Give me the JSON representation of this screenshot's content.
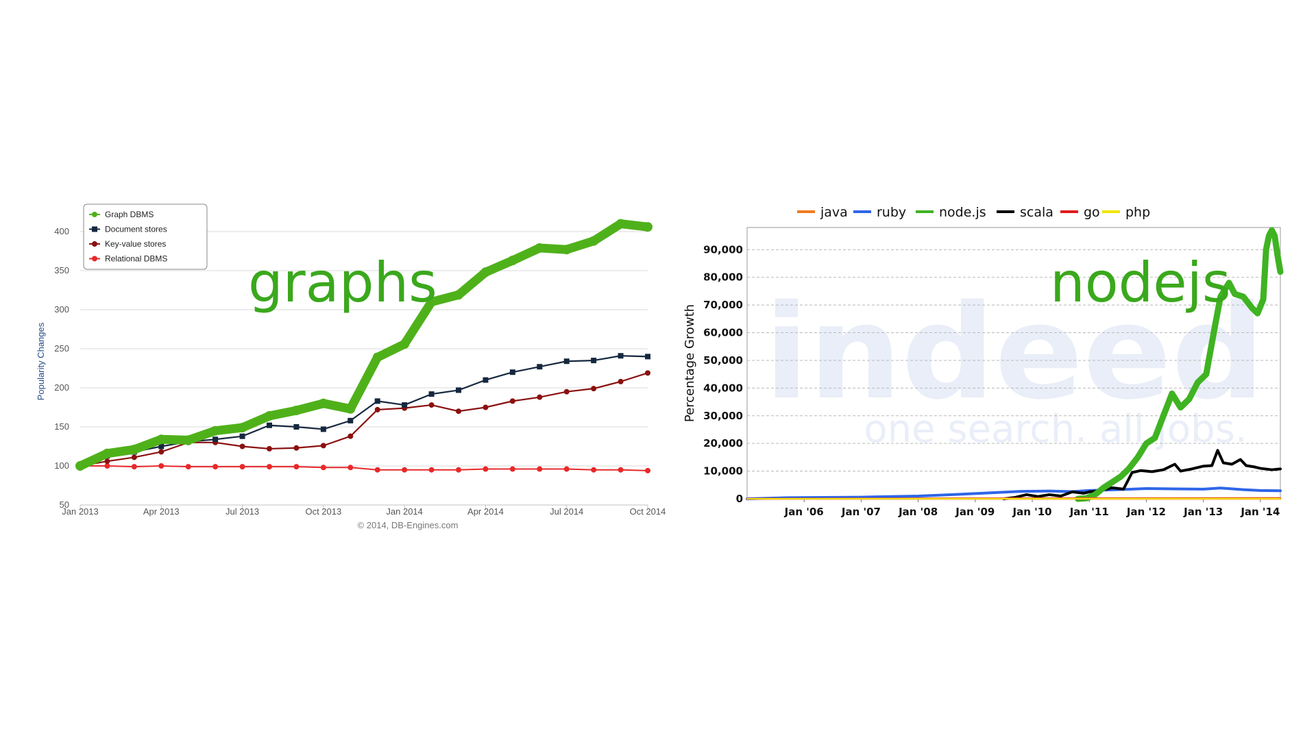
{
  "colors": {
    "graph_dbms": "#4fb11a",
    "document_stores": "#16283f",
    "key_value_stores": "#8b1010",
    "relational_dbms": "#e8282a",
    "overlay_label": "#3aa81c",
    "java": "#f07b1e",
    "ruby": "#2e66e8",
    "nodejs": "#3fb322",
    "scala": "#000000",
    "go": "#e01b1b",
    "php": "#f2e500",
    "watermark": "#e9eef8"
  },
  "overlays": {
    "left_label": "graphs",
    "right_label": "nodejs"
  },
  "chart_data": [
    {
      "type": "line",
      "title": "",
      "ylabel": "Popularity Changes",
      "xlabel": "",
      "credit": "© 2014, DB-Engines.com",
      "ylim": [
        50,
        420
      ],
      "yticks": [
        50,
        100,
        150,
        200,
        250,
        300,
        350,
        400
      ],
      "x_tick_labels": [
        "Jan 2013",
        "Apr 2013",
        "Jul 2013",
        "Oct 2013",
        "Jan 2014",
        "Apr 2014",
        "Jul 2014",
        "Oct 2014"
      ],
      "grid": true,
      "legend_position": "top-left",
      "x": [
        0,
        1,
        2,
        3,
        4,
        5,
        6,
        7,
        8,
        9,
        10,
        11,
        12,
        13,
        14,
        15,
        16,
        17,
        18,
        19,
        20,
        21
      ],
      "series": [
        {
          "name": "Graph DBMS",
          "color_key": "graph_dbms",
          "values": [
            100,
            116,
            121,
            134,
            133,
            145,
            149,
            164,
            171,
            180,
            173,
            239,
            256,
            310,
            319,
            348,
            363,
            379,
            377,
            388,
            410,
            406
          ]
        },
        {
          "name": "Document stores",
          "color_key": "document_stores",
          "values": [
            100,
            113,
            118,
            125,
            131,
            134,
            138,
            152,
            150,
            147,
            158,
            183,
            178,
            192,
            197,
            210,
            220,
            227,
            234,
            235,
            241,
            240
          ]
        },
        {
          "name": "Key-value stores",
          "color_key": "key_value_stores",
          "values": [
            100,
            106,
            111,
            118,
            130,
            130,
            125,
            122,
            123,
            126,
            138,
            172,
            174,
            178,
            170,
            175,
            183,
            188,
            195,
            199,
            208,
            219
          ]
        },
        {
          "name": "Relational DBMS",
          "color_key": "relational_dbms",
          "values": [
            100,
            100,
            99,
            100,
            99,
            99,
            99,
            99,
            99,
            98,
            98,
            95,
            95,
            95,
            95,
            96,
            96,
            96,
            96,
            95,
            95,
            94
          ]
        }
      ]
    },
    {
      "type": "line",
      "title": "",
      "ylabel": "Percentage Growth",
      "xlabel": "",
      "watermark": {
        "brand": "indeed",
        "tagline": "one search. all jobs."
      },
      "ylim": [
        0,
        98000
      ],
      "yticks": [
        0,
        10000,
        20000,
        30000,
        40000,
        50000,
        60000,
        70000,
        80000,
        90000
      ],
      "ytick_labels": [
        "0",
        "10,000",
        "20,000",
        "30,000",
        "40,000",
        "50,000",
        "60,000",
        "70,000",
        "80,000",
        "90,000"
      ],
      "xlim": [
        2005.0,
        2014.35
      ],
      "xticks": [
        2006,
        2007,
        2008,
        2009,
        2010,
        2011,
        2012,
        2013,
        2014
      ],
      "x_tick_labels": [
        "Jan '06",
        "Jan '07",
        "Jan '08",
        "Jan '09",
        "Jan '10",
        "Jan '11",
        "Jan '12",
        "Jan '13",
        "Jan '14"
      ],
      "grid": true,
      "legend_position": "top",
      "series": [
        {
          "name": "java",
          "color_key": "java",
          "x": [
            2005.0,
            2008.0,
            2011.0,
            2014.35
          ],
          "values": [
            0,
            150,
            250,
            300
          ]
        },
        {
          "name": "ruby",
          "color_key": "ruby",
          "x": [
            2005.0,
            2005.7,
            2007.0,
            2008.0,
            2008.7,
            2009.3,
            2009.8,
            2010.3,
            2010.7,
            2011.0,
            2011.5,
            2012.0,
            2012.5,
            2013.0,
            2013.3,
            2013.7,
            2014.0,
            2014.35
          ],
          "values": [
            0,
            400,
            600,
            1000,
            1600,
            2200,
            2700,
            2800,
            2600,
            3000,
            3300,
            3700,
            3600,
            3500,
            3900,
            3300,
            3000,
            2900
          ]
        },
        {
          "name": "node.js",
          "color_key": "nodejs",
          "x": [
            2010.8,
            2010.95,
            2011.1,
            2011.25,
            2011.4,
            2011.55,
            2011.7,
            2011.85,
            2012.0,
            2012.15,
            2012.3,
            2012.45,
            2012.6,
            2012.75,
            2012.9,
            2013.05,
            2013.2,
            2013.3,
            2013.45,
            2013.55,
            2013.7,
            2013.85,
            2013.95,
            2014.05,
            2014.1,
            2014.15,
            2014.2,
            2014.25,
            2014.3,
            2014.35
          ],
          "values": [
            0,
            200,
            1500,
            4000,
            6000,
            8000,
            11000,
            15000,
            20000,
            22000,
            30000,
            38000,
            33000,
            36000,
            42000,
            45000,
            62000,
            73000,
            78000,
            74000,
            73000,
            69000,
            67000,
            72000,
            90000,
            95000,
            97000,
            95000,
            88000,
            82000
          ]
        },
        {
          "name": "scala",
          "color_key": "scala",
          "x": [
            2009.5,
            2009.7,
            2009.9,
            2010.1,
            2010.3,
            2010.5,
            2010.7,
            2010.9,
            2011.0,
            2011.2,
            2011.4,
            2011.6,
            2011.75,
            2011.9,
            2012.1,
            2012.3,
            2012.5,
            2012.6,
            2012.8,
            2013.0,
            2013.15,
            2013.25,
            2013.35,
            2013.5,
            2013.65,
            2013.75,
            2013.9,
            2014.0,
            2014.2,
            2014.35
          ],
          "values": [
            0,
            500,
            1500,
            800,
            1500,
            1000,
            2500,
            2000,
            2500,
            3000,
            4000,
            3500,
            9500,
            10200,
            9800,
            10500,
            12500,
            10000,
            10800,
            11800,
            12000,
            17500,
            13000,
            12500,
            14200,
            12000,
            11500,
            11000,
            10500,
            10800
          ]
        },
        {
          "name": "go",
          "color_key": "go",
          "x": [
            2005.0,
            2014.35
          ],
          "values": [
            0,
            0
          ]
        },
        {
          "name": "php",
          "color_key": "php",
          "x": [
            2005.0,
            2014.35
          ],
          "values": [
            0,
            0
          ]
        }
      ]
    }
  ]
}
